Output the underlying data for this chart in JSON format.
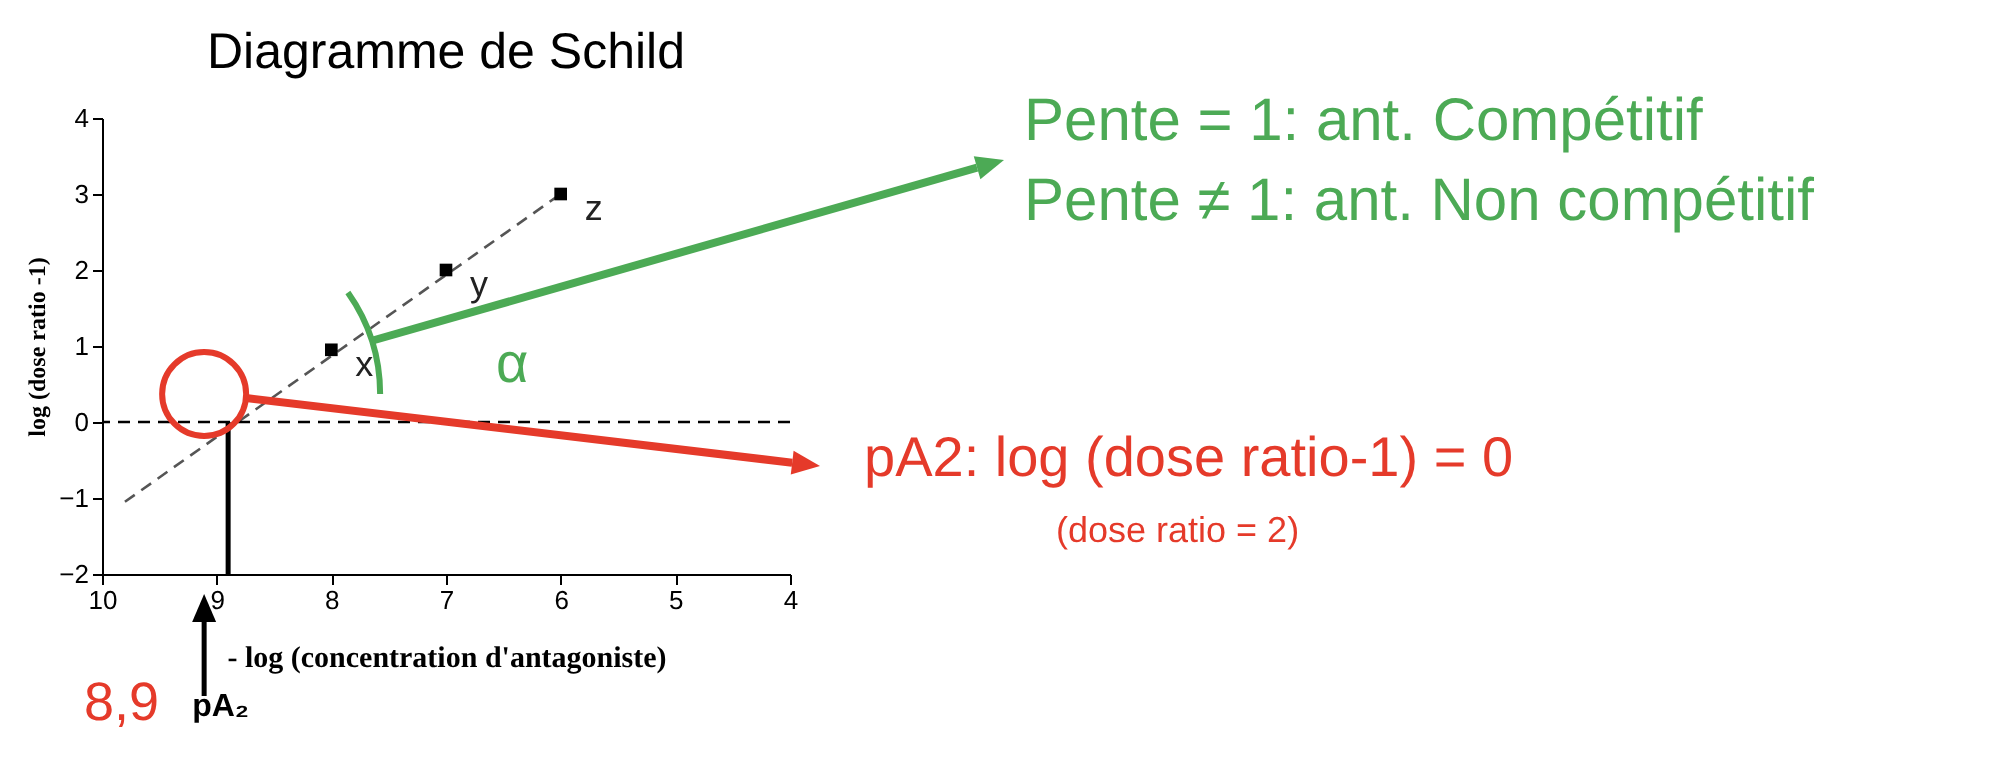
{
  "chart_data": {
    "type": "scatter",
    "title": "Diagramme de Schild",
    "xlabel": "- log (concentration d'antagoniste)",
    "ylabel": "log (dose ratio -1)",
    "xlim": [
      10,
      4
    ],
    "xticks": [
      10,
      9,
      8,
      7,
      6,
      5,
      4
    ],
    "ylim": [
      -2,
      4
    ],
    "yticks": [
      -2,
      -1,
      0,
      1,
      2,
      3,
      4
    ],
    "grid": false,
    "series": [
      {
        "type": "line",
        "color": "#555555",
        "x": [
          9.8,
          6
        ],
        "values": [
          -1.05,
          3
        ],
        "line_style": "dashed",
        "marker": "none"
      },
      {
        "color": "#000000",
        "x": [
          8,
          7,
          6
        ],
        "values": [
          0.95,
          2,
          3
        ],
        "value_labels": [
          "x",
          "y",
          "z"
        ],
        "marker": "square"
      }
    ],
    "ref_lines": [
      {
        "axis": "y",
        "value": 0,
        "color": "#000000",
        "line_style": "dashed"
      },
      {
        "axis": "x",
        "value": 8.9,
        "label": "pA₂",
        "color": "#000000",
        "line_style": "solid"
      }
    ],
    "annotations": [
      "Pente = 1: ant. Compétitif",
      "Pente ≠ 1: ant. Non compétitif",
      "pA2: log (dose ratio-1) = 0",
      "(dose ratio = 2)",
      "8,9",
      "α"
    ]
  }
}
